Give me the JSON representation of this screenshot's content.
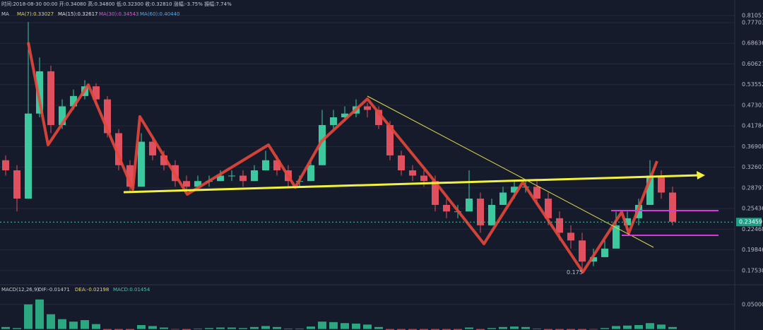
{
  "chart_data": {
    "type": "candlestick",
    "header": "时间:2018-08-30 00:00 开:0.34080 高:0.34800 低:0.32300 收:0.32810 涨幅:-3.75% 振幅:7.74%",
    "ma_labels": [
      "MA",
      "MA(7):0.33027",
      "MA(15):0.32617",
      "MA(30):0.34543",
      "MA(60):0.40440"
    ],
    "ohlc": [
      [
        0.34,
        0.35,
        0.31,
        0.32
      ],
      [
        0.32,
        0.33,
        0.25,
        0.27
      ],
      [
        0.27,
        0.78,
        0.27,
        0.45
      ],
      [
        0.45,
        0.63,
        0.44,
        0.58
      ],
      [
        0.58,
        0.6,
        0.4,
        0.42
      ],
      [
        0.42,
        0.49,
        0.41,
        0.47
      ],
      [
        0.47,
        0.52,
        0.46,
        0.5
      ],
      [
        0.5,
        0.55,
        0.49,
        0.53
      ],
      [
        0.53,
        0.54,
        0.47,
        0.49
      ],
      [
        0.49,
        0.5,
        0.39,
        0.4
      ],
      [
        0.4,
        0.41,
        0.32,
        0.33
      ],
      [
        0.33,
        0.34,
        0.28,
        0.29
      ],
      [
        0.29,
        0.4,
        0.29,
        0.38
      ],
      [
        0.38,
        0.39,
        0.34,
        0.35
      ],
      [
        0.35,
        0.36,
        0.32,
        0.33
      ],
      [
        0.33,
        0.34,
        0.29,
        0.3
      ],
      [
        0.3,
        0.31,
        0.28,
        0.29
      ],
      [
        0.29,
        0.31,
        0.29,
        0.3
      ],
      [
        0.3,
        0.31,
        0.29,
        0.3
      ],
      [
        0.3,
        0.32,
        0.3,
        0.31
      ],
      [
        0.31,
        0.32,
        0.3,
        0.31
      ],
      [
        0.31,
        0.32,
        0.29,
        0.3
      ],
      [
        0.3,
        0.33,
        0.3,
        0.32
      ],
      [
        0.32,
        0.36,
        0.32,
        0.34
      ],
      [
        0.34,
        0.35,
        0.31,
        0.32
      ],
      [
        0.32,
        0.33,
        0.29,
        0.3
      ],
      [
        0.3,
        0.31,
        0.29,
        0.3
      ],
      [
        0.3,
        0.34,
        0.3,
        0.33
      ],
      [
        0.33,
        0.46,
        0.33,
        0.42
      ],
      [
        0.42,
        0.46,
        0.41,
        0.44
      ],
      [
        0.44,
        0.47,
        0.43,
        0.45
      ],
      [
        0.45,
        0.49,
        0.44,
        0.47
      ],
      [
        0.47,
        0.48,
        0.44,
        0.46
      ],
      [
        0.46,
        0.47,
        0.41,
        0.42
      ],
      [
        0.42,
        0.43,
        0.34,
        0.35
      ],
      [
        0.35,
        0.36,
        0.31,
        0.32
      ],
      [
        0.32,
        0.33,
        0.3,
        0.31
      ],
      [
        0.31,
        0.32,
        0.29,
        0.3
      ],
      [
        0.3,
        0.31,
        0.25,
        0.26
      ],
      [
        0.26,
        0.27,
        0.24,
        0.25
      ],
      [
        0.25,
        0.26,
        0.24,
        0.25
      ],
      [
        0.25,
        0.32,
        0.25,
        0.27
      ],
      [
        0.27,
        0.28,
        0.22,
        0.23
      ],
      [
        0.23,
        0.27,
        0.23,
        0.26
      ],
      [
        0.26,
        0.29,
        0.26,
        0.28
      ],
      [
        0.28,
        0.3,
        0.27,
        0.29
      ],
      [
        0.29,
        0.3,
        0.28,
        0.29
      ],
      [
        0.29,
        0.3,
        0.26,
        0.27
      ],
      [
        0.27,
        0.28,
        0.23,
        0.24
      ],
      [
        0.24,
        0.25,
        0.21,
        0.22
      ],
      [
        0.22,
        0.23,
        0.2,
        0.21
      ],
      [
        0.21,
        0.22,
        0.175,
        0.185
      ],
      [
        0.185,
        0.2,
        0.18,
        0.19
      ],
      [
        0.19,
        0.21,
        0.19,
        0.2
      ],
      [
        0.2,
        0.25,
        0.2,
        0.23
      ],
      [
        0.23,
        0.25,
        0.22,
        0.24
      ],
      [
        0.24,
        0.27,
        0.23,
        0.26
      ],
      [
        0.26,
        0.34,
        0.26,
        0.31
      ],
      [
        0.31,
        0.32,
        0.27,
        0.28
      ],
      [
        0.28,
        0.29,
        0.23,
        0.235
      ]
    ],
    "up_color": "#3cc9a0",
    "down_color": "#e0505f",
    "log_scale": true,
    "grid": true,
    "ylim": [
      0.163,
      0.89
    ],
    "yticks": [
      0.81051,
      0.77703,
      0.68636,
      0.60627,
      0.53552,
      0.47303,
      0.41784,
      0.36908,
      0.32601,
      0.28797,
      0.25436,
      0.22468,
      0.19846,
      {
        "value": 0.1753,
        "label": "0.17530"
      }
    ],
    "last_price": 0.23459,
    "low_annotation": 0.175,
    "macd": {
      "labels": [
        "MACD(12,26,9)",
        "DIF:-0.01471",
        "DEA:-0.02198",
        "MACD:0.01454"
      ],
      "values": [
        0.004,
        0.002,
        0.05,
        0.06,
        0.03,
        0.02,
        0.015,
        0.018,
        0.01,
        -0.002,
        -0.004,
        -0.003,
        0.008,
        0.006,
        0.003,
        -0.001,
        -0.002,
        0.001,
        0.002,
        0.003,
        0.003,
        0.002,
        0.004,
        0.006,
        0.004,
        0.001,
        0.001,
        0.005,
        0.015,
        0.014,
        0.012,
        0.011,
        0.009,
        0.004,
        -0.003,
        -0.005,
        -0.004,
        -0.003,
        -0.005,
        -0.004,
        -0.002,
        0.003,
        -0.002,
        0.002,
        0.004,
        0.005,
        0.004,
        0.001,
        -0.002,
        -0.003,
        -0.003,
        -0.004,
        -0.001,
        0.002,
        0.006,
        0.007,
        0.008,
        0.012,
        0.009,
        0.004
      ],
      "pos_color": "#2fc08e",
      "neg_color": "#d9485a",
      "ylim": [
        -0.002,
        0.087
      ],
      "yticks": [
        {
          "value": 0.05,
          "label": "0.05000"
        }
      ]
    }
  }
}
